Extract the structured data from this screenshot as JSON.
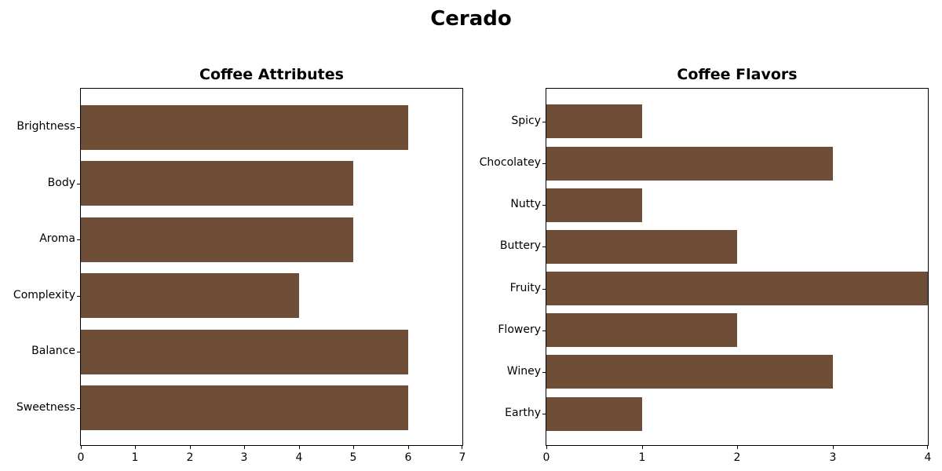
{
  "figure": {
    "title": "Cerado",
    "background_color": "#ffffff",
    "text_color": "#000000"
  },
  "chart_data": [
    {
      "type": "bar",
      "orientation": "horizontal",
      "title": "Coffee Attributes",
      "categories": [
        "Brightness",
        "Body",
        "Aroma",
        "Complexity",
        "Balance",
        "Sweetness"
      ],
      "values": [
        6,
        5,
        5,
        4,
        6,
        6
      ],
      "xlabel": "",
      "ylabel": "",
      "xlim": [
        0,
        7
      ],
      "xticks": [
        0,
        1,
        2,
        3,
        4,
        5,
        6,
        7
      ],
      "bar_color": "#6F4E37",
      "bar_rel_height": 0.8,
      "grid": false,
      "legend": null
    },
    {
      "type": "bar",
      "orientation": "horizontal",
      "title": "Coffee Flavors",
      "categories": [
        "Spicy",
        "Chocolatey",
        "Nutty",
        "Buttery",
        "Fruity",
        "Flowery",
        "Winey",
        "Earthy"
      ],
      "values": [
        1,
        3,
        1,
        2,
        4,
        2,
        3,
        1
      ],
      "xlabel": "",
      "ylabel": "",
      "xlim": [
        0,
        4
      ],
      "xticks": [
        0,
        1,
        2,
        3,
        4
      ],
      "bar_color": "#6F4E37",
      "bar_rel_height": 0.8,
      "grid": false,
      "legend": null
    }
  ]
}
